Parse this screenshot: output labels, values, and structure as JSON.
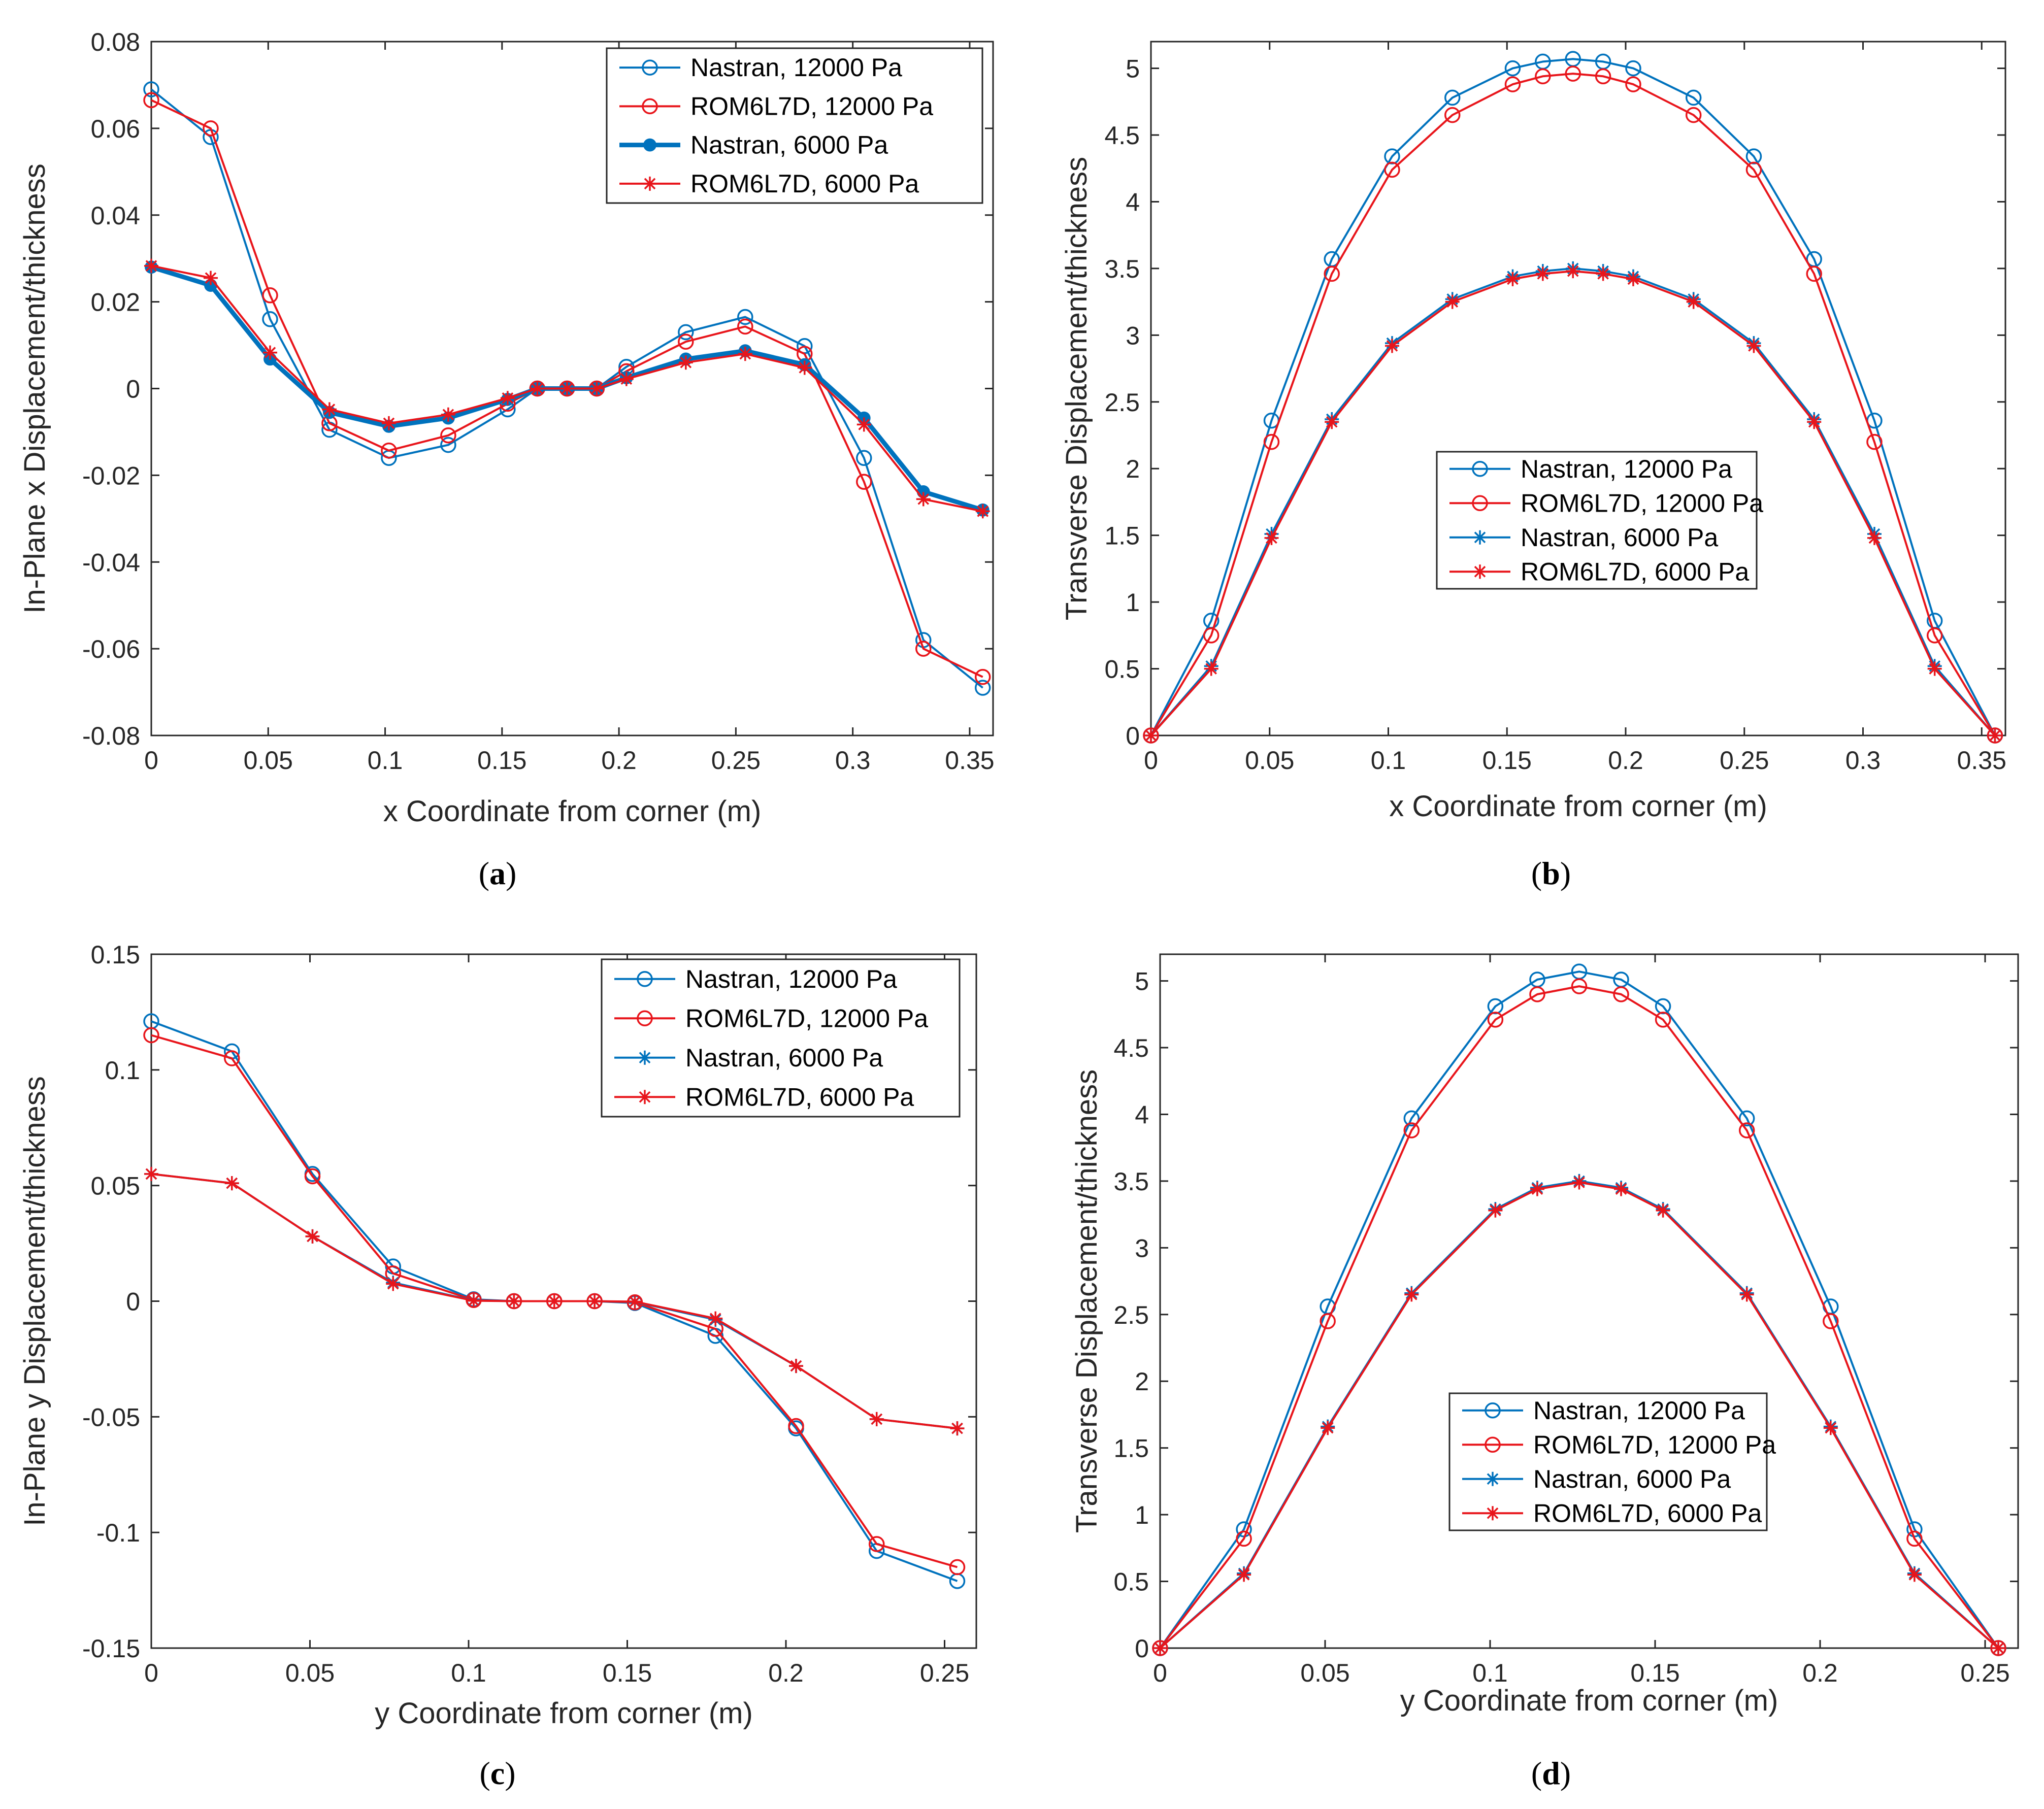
{
  "colors": {
    "nastran": "#0072BD",
    "rom": "#E8151B",
    "axis": "#262626"
  },
  "chart_data": [
    {
      "id": "a",
      "type": "line",
      "caption": "a",
      "xlabel": "x Coordinate from corner (m)",
      "ylabel": "In-Plane x Displacement/thickness",
      "xlim": [
        0,
        0.36
      ],
      "ylim": [
        -0.08,
        0.08
      ],
      "xticks": [
        0,
        0.05,
        0.1,
        0.15,
        0.2,
        0.25,
        0.3,
        0.35
      ],
      "xtick_labels": [
        "0",
        "0.05",
        "0.1",
        "0.15",
        "0.2",
        "0.25",
        "0.3",
        "0.35"
      ],
      "yticks": [
        -0.08,
        -0.06,
        -0.04,
        -0.02,
        0,
        0.02,
        0.04,
        0.06,
        0.08
      ],
      "ytick_labels": [
        "-0.08",
        "-0.06",
        "-0.04",
        "-0.02",
        "0",
        "0.02",
        "0.04",
        "0.06",
        "0.08"
      ],
      "legend": {
        "position": "top-right"
      },
      "x": [
        0,
        0.0254,
        0.0508,
        0.0762,
        0.1016,
        0.127,
        0.1524,
        0.1651,
        0.1778,
        0.1905,
        0.2032,
        0.2286,
        0.254,
        0.2794,
        0.3048,
        0.3302,
        0.3556
      ],
      "series": [
        {
          "name": "Nastran, 12000 Pa",
          "color": "nastran",
          "marker": "circle",
          "thick": false,
          "values": [
            0.069,
            0.058,
            0.016,
            -0.0095,
            -0.016,
            -0.013,
            -0.0048,
            0,
            0,
            0,
            0.005,
            0.013,
            0.0165,
            0.0098,
            -0.016,
            -0.058,
            -0.069
          ]
        },
        {
          "name": "ROM6L7D, 12000 Pa",
          "color": "rom",
          "marker": "circle",
          "thick": false,
          "values": [
            0.0665,
            0.06,
            0.0215,
            -0.008,
            -0.0143,
            -0.0108,
            -0.0035,
            0,
            0,
            0,
            0.004,
            0.0108,
            0.0143,
            0.008,
            -0.0215,
            -0.06,
            -0.0665
          ]
        },
        {
          "name": "Nastran, 6000 Pa",
          "color": "nastran",
          "marker": "dot",
          "thick": true,
          "values": [
            0.028,
            0.0238,
            0.0068,
            -0.0055,
            -0.0087,
            -0.0068,
            -0.0025,
            0,
            0,
            0,
            0.0025,
            0.0068,
            0.0087,
            0.0055,
            -0.0068,
            -0.0238,
            -0.028
          ]
        },
        {
          "name": "ROM6L7D, 6000 Pa",
          "color": "rom",
          "marker": "star",
          "thick": false,
          "values": [
            0.0283,
            0.0255,
            0.0083,
            -0.0048,
            -0.008,
            -0.006,
            -0.0022,
            0,
            0,
            0,
            0.0022,
            0.006,
            0.008,
            0.0048,
            -0.0083,
            -0.0255,
            -0.0283
          ]
        }
      ]
    },
    {
      "id": "b",
      "type": "line",
      "caption": "b",
      "xlabel": "x Coordinate from corner (m)",
      "ylabel": "Transverse Displacement/thickness",
      "xlim": [
        0,
        0.36
      ],
      "ylim": [
        0,
        5.2
      ],
      "xticks": [
        0,
        0.05,
        0.1,
        0.15,
        0.2,
        0.25,
        0.3,
        0.35
      ],
      "xtick_labels": [
        "0",
        "0.05",
        "0.1",
        "0.15",
        "0.2",
        "0.25",
        "0.3",
        "0.35"
      ],
      "yticks": [
        0,
        0.5,
        1,
        1.5,
        2,
        2.5,
        3,
        3.5,
        4,
        4.5,
        5
      ],
      "ytick_labels": [
        "0",
        "0.5",
        "1",
        "1.5",
        "2",
        "2.5",
        "3",
        "3.5",
        "4",
        "4.5",
        "5"
      ],
      "legend": {
        "position": "center"
      },
      "x": [
        0,
        0.0254,
        0.0508,
        0.0762,
        0.1016,
        0.127,
        0.1524,
        0.1651,
        0.1778,
        0.1905,
        0.2032,
        0.2286,
        0.254,
        0.2794,
        0.3048,
        0.3302,
        0.3556
      ],
      "series": [
        {
          "name": "Nastran, 12000 Pa",
          "color": "nastran",
          "marker": "circle",
          "thick": false,
          "values": [
            0,
            0.86,
            2.36,
            3.57,
            4.34,
            4.78,
            5.0,
            5.05,
            5.07,
            5.05,
            5.0,
            4.78,
            4.34,
            3.57,
            2.36,
            0.86,
            0
          ]
        },
        {
          "name": "ROM6L7D, 12000 Pa",
          "color": "rom",
          "marker": "circle",
          "thick": false,
          "values": [
            0,
            0.75,
            2.2,
            3.46,
            4.24,
            4.65,
            4.88,
            4.94,
            4.96,
            4.94,
            4.88,
            4.65,
            4.24,
            3.46,
            2.2,
            0.75,
            0
          ]
        },
        {
          "name": "Nastran, 6000 Pa",
          "color": "nastran",
          "marker": "star",
          "thick": false,
          "values": [
            0,
            0.52,
            1.51,
            2.37,
            2.94,
            3.27,
            3.44,
            3.48,
            3.5,
            3.48,
            3.44,
            3.27,
            2.94,
            2.37,
            1.51,
            0.52,
            0
          ]
        },
        {
          "name": "ROM6L7D, 6000 Pa",
          "color": "rom",
          "marker": "star",
          "thick": false,
          "values": [
            0,
            0.5,
            1.48,
            2.35,
            2.92,
            3.25,
            3.42,
            3.46,
            3.48,
            3.46,
            3.42,
            3.25,
            2.92,
            2.35,
            1.48,
            0.5,
            0
          ]
        }
      ]
    },
    {
      "id": "c",
      "type": "line",
      "caption": "c",
      "xlabel": "y Coordinate from corner (m)",
      "ylabel": "In-Plane y Displacement/thickness",
      "xlim": [
        0,
        0.26
      ],
      "ylim": [
        -0.15,
        0.15
      ],
      "xticks": [
        0,
        0.05,
        0.1,
        0.15,
        0.2,
        0.25
      ],
      "xtick_labels": [
        "0",
        "0.05",
        "0.1",
        "0.15",
        "0.2",
        "0.25"
      ],
      "yticks": [
        -0.15,
        -0.1,
        -0.05,
        0,
        0.05,
        0.1,
        0.15
      ],
      "ytick_labels": [
        "-0.15",
        "-0.1",
        "-0.05",
        "0",
        "0.05",
        "0.1",
        "0.15"
      ],
      "legend": {
        "position": "top-right"
      },
      "x": [
        0,
        0.0254,
        0.0508,
        0.0762,
        0.1016,
        0.1143,
        0.127,
        0.1397,
        0.1524,
        0.1778,
        0.2032,
        0.2286,
        0.254
      ],
      "series": [
        {
          "name": "Nastran, 12000 Pa",
          "color": "nastran",
          "marker": "circle",
          "thick": false,
          "values": [
            0.121,
            0.108,
            0.055,
            0.015,
            0.0008,
            0,
            0,
            0,
            -0.0008,
            -0.015,
            -0.055,
            -0.108,
            -0.121
          ]
        },
        {
          "name": "ROM6L7D, 12000 Pa",
          "color": "rom",
          "marker": "circle",
          "thick": false,
          "values": [
            0.115,
            0.105,
            0.054,
            0.012,
            0.0005,
            0,
            0,
            0,
            -0.0005,
            -0.012,
            -0.054,
            -0.105,
            -0.115
          ]
        },
        {
          "name": "Nastran, 6000 Pa",
          "color": "nastran",
          "marker": "star",
          "thick": false,
          "values": [
            0.055,
            0.051,
            0.028,
            0.008,
            0.0003,
            0,
            0,
            0,
            -0.0003,
            -0.008,
            -0.028,
            -0.051,
            -0.055
          ]
        },
        {
          "name": "ROM6L7D, 6000 Pa",
          "color": "rom",
          "marker": "star",
          "thick": false,
          "values": [
            0.055,
            0.051,
            0.028,
            0.0075,
            0.0002,
            0,
            0,
            0,
            -0.0002,
            -0.0075,
            -0.028,
            -0.051,
            -0.055
          ]
        }
      ]
    },
    {
      "id": "d",
      "type": "line",
      "caption": "d",
      "xlabel": "y Coordinate from corner (m)",
      "ylabel": "Transverse Displacement/thickness",
      "xlim": [
        0,
        0.26
      ],
      "ylim": [
        0,
        5.2
      ],
      "xticks": [
        0,
        0.05,
        0.1,
        0.15,
        0.2,
        0.25
      ],
      "xtick_labels": [
        "0",
        "0.05",
        "0.1",
        "0.15",
        "0.2",
        "0.25"
      ],
      "yticks": [
        0,
        0.5,
        1,
        1.5,
        2,
        2.5,
        3,
        3.5,
        4,
        4.5,
        5
      ],
      "ytick_labels": [
        "0",
        "0.5",
        "1",
        "1.5",
        "2",
        "2.5",
        "3",
        "3.5",
        "4",
        "4.5",
        "5"
      ],
      "legend": {
        "position": "lower-center"
      },
      "x": [
        0,
        0.0254,
        0.0508,
        0.0762,
        0.1016,
        0.1143,
        0.127,
        0.1397,
        0.1524,
        0.1778,
        0.2032,
        0.2286,
        0.254
      ],
      "series": [
        {
          "name": "Nastran, 12000 Pa",
          "color": "nastran",
          "marker": "circle",
          "thick": false,
          "values": [
            0,
            0.89,
            2.56,
            3.97,
            4.81,
            5.01,
            5.07,
            5.01,
            4.81,
            3.97,
            2.56,
            0.89,
            0
          ]
        },
        {
          "name": "ROM6L7D, 12000 Pa",
          "color": "rom",
          "marker": "circle",
          "thick": false,
          "values": [
            0,
            0.82,
            2.45,
            3.88,
            4.71,
            4.9,
            4.96,
            4.9,
            4.71,
            3.88,
            2.45,
            0.82,
            0
          ]
        },
        {
          "name": "Nastran, 6000 Pa",
          "color": "nastran",
          "marker": "star",
          "thick": false,
          "values": [
            0,
            0.56,
            1.66,
            2.66,
            3.29,
            3.45,
            3.5,
            3.45,
            3.29,
            2.66,
            1.66,
            0.56,
            0
          ]
        },
        {
          "name": "ROM6L7D, 6000 Pa",
          "color": "rom",
          "marker": "star",
          "thick": false,
          "values": [
            0,
            0.55,
            1.65,
            2.65,
            3.28,
            3.44,
            3.49,
            3.44,
            3.28,
            2.65,
            1.65,
            0.55,
            0
          ]
        }
      ]
    }
  ]
}
